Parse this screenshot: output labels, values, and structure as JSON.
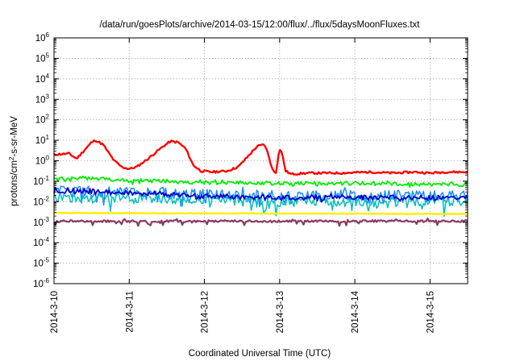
{
  "chart_data": {
    "type": "line",
    "title": "/data/run/goesPlots/archive/2014-03-15/12:00/flux/../flux/5daysMoonFluxes.txt",
    "xlabel": "Coordinated Universal Time (UTC)",
    "ylabel": "protons/cm²-s-sr-MeV",
    "ylabel_parts": [
      "protons/cm",
      "2",
      "-s-sr-MeV"
    ],
    "yscale": "log",
    "ylim_exp": [
      -6,
      6
    ],
    "y_tick_base": "10",
    "y_tick_exponents": [
      "-6",
      "-5",
      "-4",
      "-3",
      "-2",
      "-1",
      "0",
      "1",
      "2",
      "3",
      "4",
      "5",
      "6"
    ],
    "xlim_days": [
      0,
      5.5
    ],
    "x_ticks": [
      {
        "day": 0,
        "label": "2014-3-10"
      },
      {
        "day": 1,
        "label": "2014-3-11"
      },
      {
        "day": 2,
        "label": "2014-3-12"
      },
      {
        "day": 3,
        "label": "2014-3-13"
      },
      {
        "day": 4,
        "label": "2014-3-14"
      },
      {
        "day": 5,
        "label": "2014-3-15"
      }
    ],
    "grid": true,
    "series": [
      {
        "color": "#ff0000",
        "width": 2.4,
        "base": [
          [
            0,
            0.3
          ],
          [
            0.2,
            0.35
          ],
          [
            0.3,
            0.1
          ],
          [
            0.5,
            0.9
          ],
          [
            0.55,
            1.0
          ],
          [
            0.65,
            0.8
          ],
          [
            0.8,
            0.0
          ],
          [
            0.9,
            -0.3
          ],
          [
            1.0,
            -0.4
          ],
          [
            1.1,
            -0.3
          ],
          [
            1.25,
            0.1
          ],
          [
            1.45,
            0.7
          ],
          [
            1.55,
            0.95
          ],
          [
            1.65,
            0.9
          ],
          [
            1.75,
            0.6
          ],
          [
            1.85,
            -0.2
          ],
          [
            1.95,
            -0.5
          ],
          [
            2.1,
            -0.55
          ],
          [
            2.3,
            -0.5
          ],
          [
            2.45,
            -0.3
          ],
          [
            2.6,
            0.3
          ],
          [
            2.7,
            0.7
          ],
          [
            2.8,
            0.8
          ],
          [
            2.85,
            0.3
          ],
          [
            2.9,
            -0.4
          ],
          [
            2.95,
            -0.6
          ],
          [
            3.0,
            0.6
          ],
          [
            3.03,
            0.4
          ],
          [
            3.08,
            -0.5
          ],
          [
            3.15,
            -0.65
          ],
          [
            3.4,
            -0.6
          ],
          [
            3.8,
            -0.6
          ],
          [
            4.2,
            -0.55
          ],
          [
            4.5,
            -0.6
          ],
          [
            4.8,
            -0.55
          ],
          [
            5.0,
            -0.6
          ],
          [
            5.2,
            -0.55
          ],
          [
            5.5,
            -0.55
          ]
        ],
        "noise": 0.05,
        "spikes": 0,
        "seed": 11
      },
      {
        "color": "#00ee00",
        "width": 1.8,
        "base": [
          [
            0,
            -0.9
          ],
          [
            0.5,
            -0.85
          ],
          [
            1.0,
            -0.95
          ],
          [
            2.0,
            -1.05
          ],
          [
            3.0,
            -1.1
          ],
          [
            4.0,
            -1.1
          ],
          [
            5.0,
            -1.15
          ],
          [
            5.5,
            -1.15
          ]
        ],
        "noise": 0.1,
        "spikes": 0.1,
        "seed": 23
      },
      {
        "color": "#1a8cff",
        "width": 1.5,
        "base": [
          [
            0,
            -1.5
          ],
          [
            1.0,
            -1.5
          ],
          [
            2.0,
            -1.65
          ],
          [
            3.0,
            -1.7
          ],
          [
            4.0,
            -1.7
          ],
          [
            5.5,
            -1.75
          ]
        ],
        "noise": 0.28,
        "spikes": 0.35,
        "seed": 37
      },
      {
        "color": "#00bfbf",
        "width": 1.5,
        "base": [
          [
            0,
            -1.8
          ],
          [
            1.0,
            -1.85
          ],
          [
            2.0,
            -1.95
          ],
          [
            3.0,
            -2.0
          ],
          [
            4.0,
            -2.0
          ],
          [
            5.5,
            -2.0
          ]
        ],
        "noise": 0.25,
        "spikes": 0.35,
        "seed": 41
      },
      {
        "color": "#0000cc",
        "width": 1.8,
        "base": [
          [
            0,
            -1.45
          ],
          [
            1.0,
            -1.55
          ],
          [
            2.0,
            -1.75
          ],
          [
            3.0,
            -1.8
          ],
          [
            4.0,
            -1.8
          ],
          [
            5.5,
            -1.8
          ]
        ],
        "noise": 0.13,
        "spikes": 0.1,
        "seed": 53
      },
      {
        "color": "#ffee00",
        "width": 2.4,
        "base": [
          [
            0,
            -2.55
          ],
          [
            5.5,
            -2.6
          ]
        ],
        "noise": 0.015,
        "spikes": 0,
        "seed": 61
      },
      {
        "color": "#8b3a62",
        "width": 2.2,
        "base": [
          [
            0,
            -2.95
          ],
          [
            5.5,
            -2.95
          ]
        ],
        "noise": 0.05,
        "spikes": 0.15,
        "seed": 71
      }
    ]
  }
}
